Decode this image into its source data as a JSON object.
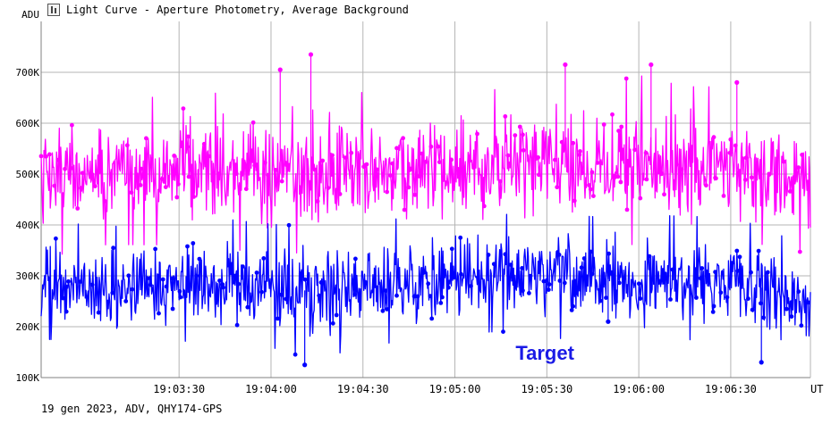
{
  "window": {
    "title": "Light Curve - Aperture Photometry, Average Background"
  },
  "footer": {
    "info": "19 gen 2023, ADV, QHY174-GPS"
  },
  "chart_data": {
    "type": "line",
    "ylabel": "ADU",
    "xlabel": "UT",
    "ylim": [
      100000,
      800000
    ],
    "xlim": [
      "19:02:45",
      "19:06:56"
    ],
    "y_ticks": [
      {
        "value": 100000,
        "label": "100K"
      },
      {
        "value": 200000,
        "label": "200K"
      },
      {
        "value": 300000,
        "label": "300K"
      },
      {
        "value": 400000,
        "label": "400K"
      },
      {
        "value": 500000,
        "label": "500K"
      },
      {
        "value": 600000,
        "label": "600K"
      },
      {
        "value": 700000,
        "label": "700K"
      }
    ],
    "x_ticks": [
      "19:03:30",
      "19:04:00",
      "19:04:30",
      "19:05:00",
      "19:05:30",
      "19:06:00",
      "19:06:30"
    ],
    "grid": true,
    "series": [
      {
        "name": "",
        "color": "#ff00ff",
        "x": [
          "19:02:45",
          "19:03:00",
          "19:03:15",
          "19:03:30",
          "19:03:45",
          "19:04:00",
          "19:04:15",
          "19:04:30",
          "19:04:45",
          "19:05:00",
          "19:05:15",
          "19:05:30",
          "19:05:45",
          "19:06:00",
          "19:06:15",
          "19:06:30",
          "19:06:45",
          "19:06:56"
        ],
        "y": [
          500000,
          510000,
          505000,
          510000,
          505000,
          500000,
          505000,
          510000,
          505000,
          510000,
          510000,
          515000,
          510000,
          510000,
          505000,
          510000,
          500000,
          490000
        ],
        "y_low": [
          350000,
          380000,
          380000,
          380000,
          375000,
          360000,
          370000,
          385000,
          380000,
          385000,
          390000,
          385000,
          385000,
          380000,
          380000,
          380000,
          380000,
          360000
        ],
        "y_high": [
          640000,
          640000,
          630000,
          635000,
          640000,
          650000,
          660000,
          640000,
          640000,
          650000,
          645000,
          660000,
          650000,
          670000,
          650000,
          650000,
          640000,
          620000
        ],
        "peaks": [
          [
            "19:04:13",
            735000
          ],
          [
            "19:04:03",
            705000
          ],
          [
            "19:05:36",
            715000
          ],
          [
            "19:06:04",
            715000
          ],
          [
            "19:06:32",
            680000
          ]
        ]
      },
      {
        "name": "Target",
        "color": "#0000ff",
        "x": [
          "19:02:45",
          "19:03:00",
          "19:03:15",
          "19:03:30",
          "19:03:45",
          "19:04:00",
          "19:04:15",
          "19:04:30",
          "19:04:45",
          "19:05:00",
          "19:05:15",
          "19:05:30",
          "19:05:45",
          "19:06:00",
          "19:06:15",
          "19:06:30",
          "19:06:45",
          "19:06:56"
        ],
        "y": [
          285000,
          280000,
          275000,
          280000,
          285000,
          275000,
          270000,
          280000,
          285000,
          295000,
          300000,
          295000,
          290000,
          295000,
          290000,
          290000,
          270000,
          240000
        ],
        "y_low": [
          190000,
          185000,
          180000,
          185000,
          190000,
          175000,
          150000,
          180000,
          185000,
          200000,
          205000,
          195000,
          185000,
          190000,
          190000,
          185000,
          160000,
          135000
        ],
        "y_high": [
          390000,
          385000,
          380000,
          385000,
          395000,
          385000,
          380000,
          395000,
          395000,
          400000,
          405000,
          405000,
          400000,
          405000,
          400000,
          400000,
          370000,
          330000
        ],
        "peaks": [
          [
            "19:04:11",
            125000
          ],
          [
            "19:05:50",
            210000
          ],
          [
            "19:06:40",
            130000
          ]
        ]
      }
    ],
    "annotations": [
      {
        "text": "Target",
        "x": "19:05:30",
        "y": 135000,
        "color": "#1a1ae6"
      }
    ]
  }
}
